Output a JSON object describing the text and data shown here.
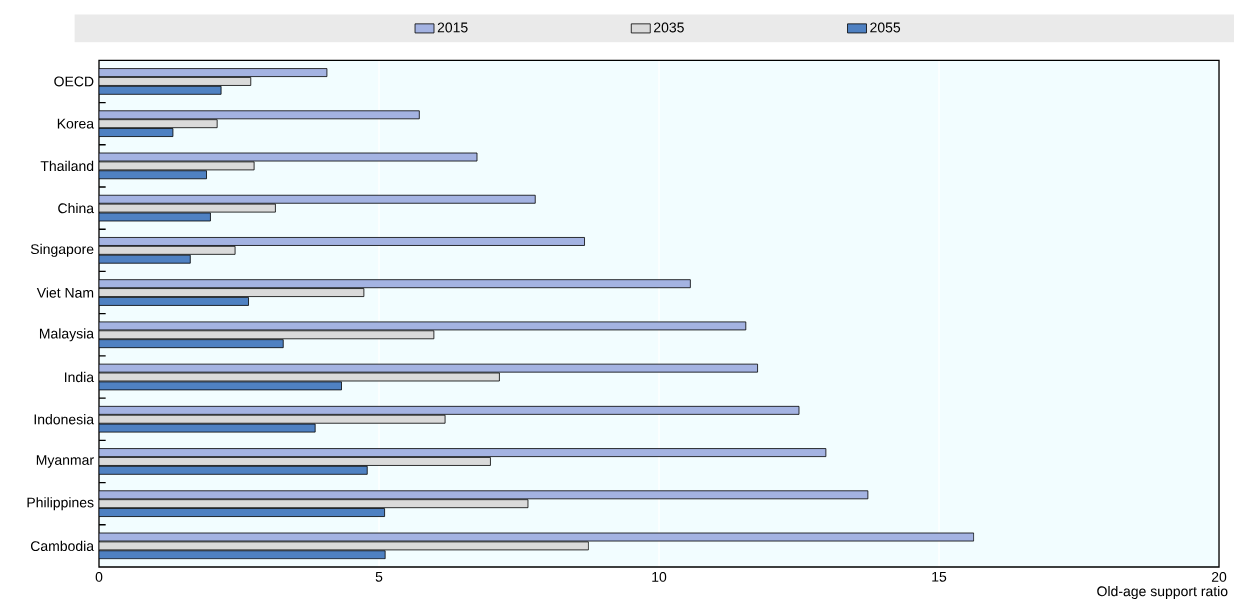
{
  "chart_data": {
    "type": "bar",
    "orientation": "horizontal",
    "categories": [
      "OECD",
      "Korea",
      "Thailand",
      "China",
      "Singapore",
      "Viet Nam",
      "Malaysia",
      "India",
      "Indonesia",
      "Myanmar",
      "Philippines",
      "Cambodia"
    ],
    "series": [
      {
        "name": "2015",
        "color": "#a4b3e2",
        "values": [
          4.07,
          5.72,
          6.75,
          7.79,
          8.67,
          10.56,
          11.55,
          11.76,
          12.5,
          12.98,
          13.73,
          15.62
        ]
      },
      {
        "name": "2035",
        "color": "#dadada",
        "values": [
          2.71,
          2.11,
          2.77,
          3.15,
          2.43,
          4.73,
          5.98,
          7.15,
          6.18,
          6.99,
          7.66,
          8.74
        ]
      },
      {
        "name": "2055",
        "color": "#4f81c2",
        "values": [
          2.18,
          1.32,
          1.92,
          1.99,
          1.63,
          2.67,
          3.29,
          4.33,
          3.86,
          4.79,
          5.1,
          5.11
        ]
      }
    ],
    "xlabel": "Old-age support ratio",
    "xlim": [
      0,
      20
    ],
    "xticks": [
      0,
      5,
      10,
      15,
      20
    ],
    "grid": "x",
    "legend": "top"
  }
}
